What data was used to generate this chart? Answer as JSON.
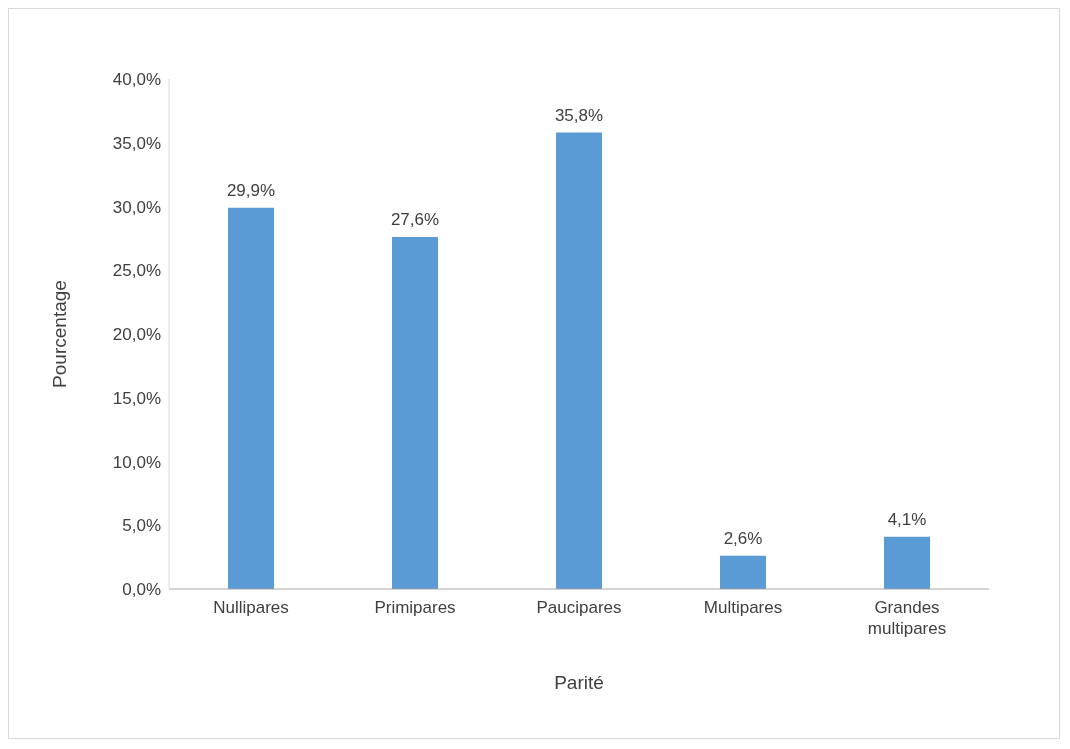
{
  "chart_data": {
    "type": "bar",
    "xlabel": "Parité",
    "ylabel": "Pourcentage",
    "categories": [
      "Nullipares",
      "Primipares",
      "Paucipares",
      "Multipares",
      "Grandes multipares"
    ],
    "values": [
      29.9,
      27.6,
      35.8,
      2.6,
      4.1
    ],
    "value_labels": [
      "29,9%",
      "27,6%",
      "35,8%",
      "2,6%",
      "4,1%"
    ],
    "color": "#5b9bd5",
    "ylim": [
      0,
      40
    ],
    "yticks": [
      {
        "value": 0,
        "label": "0,0%"
      },
      {
        "value": 5,
        "label": "5,0%"
      },
      {
        "value": 10,
        "label": "10,0%"
      },
      {
        "value": 15,
        "label": "15,0%"
      },
      {
        "value": 20,
        "label": "20,0%"
      },
      {
        "value": 25,
        "label": "25,0%"
      },
      {
        "value": 30,
        "label": "30,0%"
      },
      {
        "value": 35,
        "label": "35,0%"
      },
      {
        "value": 40,
        "label": "40,0%"
      }
    ],
    "grid": false,
    "legend": false
  }
}
